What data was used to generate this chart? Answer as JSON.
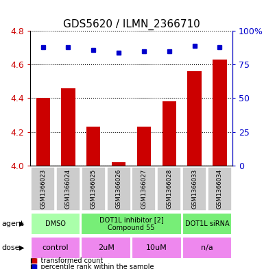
{
  "title": "GDS5620 / ILMN_2366710",
  "samples": [
    "GSM1366023",
    "GSM1366024",
    "GSM1366025",
    "GSM1366026",
    "GSM1366027",
    "GSM1366028",
    "GSM1366033",
    "GSM1366034"
  ],
  "red_values": [
    4.4,
    4.46,
    4.23,
    4.02,
    4.23,
    4.38,
    4.56,
    4.63
  ],
  "blue_percentiles": [
    88,
    88,
    86,
    84,
    85,
    85,
    89,
    88
  ],
  "ylim_left": [
    4.0,
    4.8
  ],
  "ylim_right": [
    0,
    100
  ],
  "yticks_left": [
    4.0,
    4.2,
    4.4,
    4.6,
    4.8
  ],
  "yticks_right": [
    0,
    25,
    50,
    75,
    100
  ],
  "ytick_right_labels": [
    "0",
    "25",
    "50",
    "75",
    "100%"
  ],
  "bar_color": "#cc0000",
  "dot_color": "#0000cc",
  "agent_row": [
    {
      "label": "DMSO",
      "span": [
        0,
        2
      ],
      "color": "#aaffaa"
    },
    {
      "label": "DOT1L inhibitor [2]\nCompound 55",
      "span": [
        2,
        6
      ],
      "color": "#77ee77"
    },
    {
      "label": "DOT1L siRNA",
      "span": [
        6,
        8
      ],
      "color": "#77ee77"
    }
  ],
  "dose_row": [
    {
      "label": "control",
      "span": [
        0,
        2
      ],
      "color": "#ee88ee"
    },
    {
      "label": "2uM",
      "span": [
        2,
        4
      ],
      "color": "#ee88ee"
    },
    {
      "label": "10uM",
      "span": [
        4,
        6
      ],
      "color": "#ee88ee"
    },
    {
      "label": "n/a",
      "span": [
        6,
        8
      ],
      "color": "#ee88ee"
    }
  ],
  "legend_red": "transformed count",
  "legend_blue": "percentile rank within the sample",
  "gsm_box_color": "#cccccc",
  "agent_label_fontsize": 7,
  "dose_label_fontsize": 8,
  "gsm_fontsize": 6.2,
  "title_fontsize": 11,
  "ytick_fontsize": 9
}
